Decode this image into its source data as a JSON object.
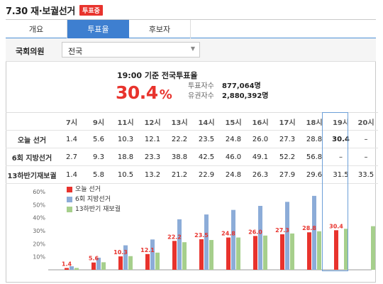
{
  "header": {
    "title": "7.30 재·보궐선거",
    "badge": "투표중"
  },
  "tabs": [
    {
      "label": "개요",
      "active": false
    },
    {
      "label": "투표율",
      "active": true
    },
    {
      "label": "후보자",
      "active": false
    }
  ],
  "filter": {
    "label": "국회의원",
    "selected": "전국"
  },
  "summary": {
    "caption": "19:00 기준 전국투표율",
    "rate": "30.4",
    "rate_unit": "%",
    "voters_label": "투표자수",
    "voters_value": "877,064명",
    "electorate_label": "유권자수",
    "electorate_value": "2,880,392명"
  },
  "table": {
    "hours": [
      "7시",
      "9시",
      "11시",
      "12시",
      "13시",
      "14시",
      "15시",
      "16시",
      "17시",
      "18시",
      "19시",
      "20시"
    ],
    "rows": [
      {
        "label": "오늘 선거",
        "values": [
          "1.4",
          "5.6",
          "10.3",
          "12.1",
          "22.2",
          "23.5",
          "24.8",
          "26.0",
          "27.3",
          "28.8",
          "30.4",
          "–"
        ]
      },
      {
        "label": "6회 지방선거",
        "values": [
          "2.7",
          "9.3",
          "18.8",
          "23.3",
          "38.8",
          "42.5",
          "46.0",
          "49.1",
          "52.2",
          "56.8",
          "–",
          "–"
        ]
      },
      {
        "label": "13하반기재보궐",
        "values": [
          "1.4",
          "5.8",
          "10.5",
          "13.2",
          "21.2",
          "22.9",
          "24.8",
          "26.3",
          "27.9",
          "29.6",
          "31.5",
          "33.5"
        ]
      }
    ]
  },
  "chart_data": {
    "type": "bar",
    "categories": [
      "7시",
      "9시",
      "11시",
      "12시",
      "13시",
      "14시",
      "15시",
      "16시",
      "17시",
      "18시",
      "19시",
      "20시"
    ],
    "series": [
      {
        "name": "오늘 선거",
        "color": "#e8332d",
        "values": [
          1.4,
          5.6,
          10.3,
          12.1,
          22.2,
          23.5,
          24.8,
          26.0,
          27.3,
          28.8,
          30.4,
          null
        ]
      },
      {
        "name": "6회 지방선거",
        "color": "#8cacd8",
        "values": [
          2.7,
          9.3,
          18.8,
          23.3,
          38.8,
          42.5,
          46.0,
          49.1,
          52.2,
          56.8,
          null,
          null
        ]
      },
      {
        "name": "13하반기 재보궐",
        "color": "#a6cf8c",
        "values": [
          1.4,
          5.8,
          10.5,
          13.2,
          21.2,
          22.9,
          24.8,
          26.3,
          27.9,
          29.6,
          31.5,
          33.5
        ]
      }
    ],
    "data_labels": [
      "1.4",
      "5.6",
      "10.3",
      "12.1",
      "22.2",
      "23.5",
      "24.8",
      "26.0",
      "27.3",
      "28.8",
      "30.4"
    ],
    "yticks": [
      "60%",
      "50%",
      "40%",
      "30%",
      "20%",
      "10%"
    ],
    "ylim": [
      0,
      60
    ]
  }
}
